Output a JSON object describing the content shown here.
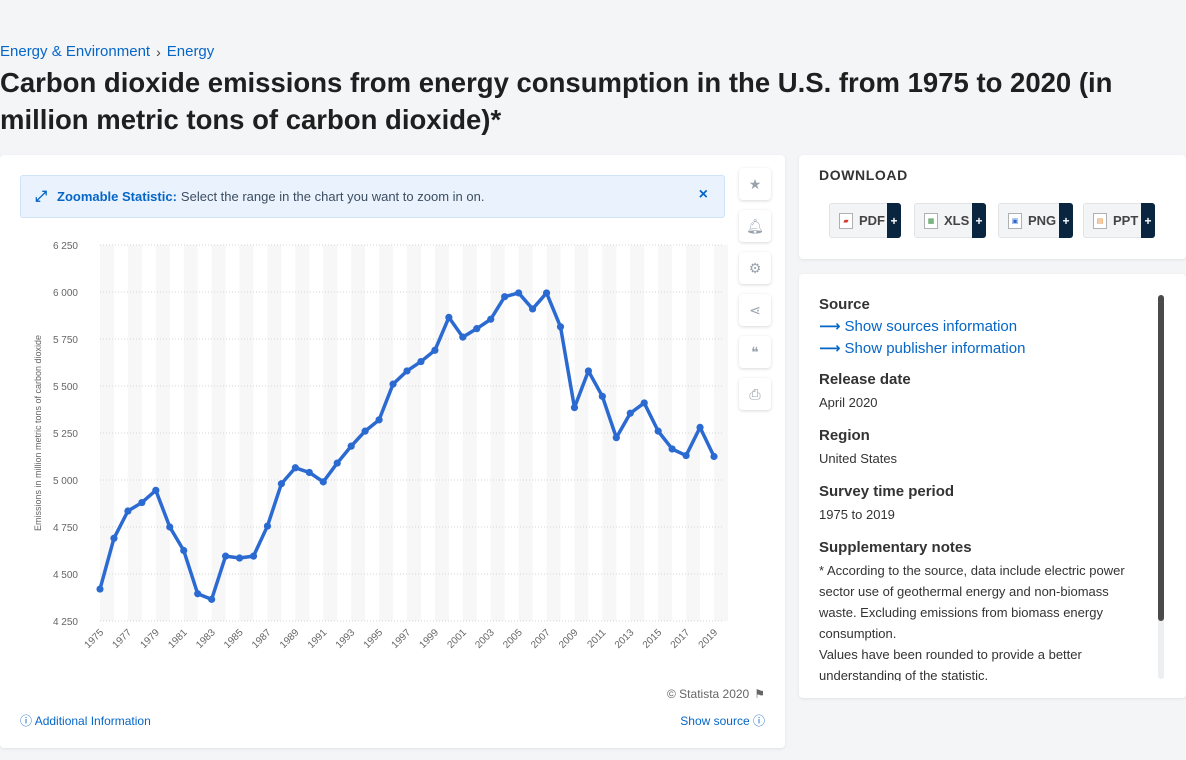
{
  "breadcrumb": {
    "items": [
      "Energy & Environment",
      "Energy"
    ],
    "separator": "›"
  },
  "page_title": "Carbon dioxide emissions from energy consumption in the U.S. from 1975 to 2020 (in million metric tons of carbon dioxide)*",
  "zoom_banner": {
    "label": "Zoomable Statistic:",
    "text": "Select the range in the chart you want to zoom in on.",
    "close": "×"
  },
  "side_tools": [
    "star-icon",
    "bell-icon",
    "gear-icon",
    "share-icon",
    "quote-icon",
    "print-icon"
  ],
  "chart_data": {
    "type": "line",
    "ylabel": "Emissions in million metric tons of carbon dioxide",
    "xlabel": "",
    "ylim": [
      4250,
      6250
    ],
    "yticks": [
      4250,
      4500,
      4750,
      5000,
      5250,
      5500,
      5750,
      6000,
      6250
    ],
    "ytick_labels": [
      "4 250",
      "4 500",
      "4 750",
      "5 000",
      "5 250",
      "5 500",
      "5 750",
      "6 000",
      "6 250"
    ],
    "xtick_labels": [
      "1975",
      "1977",
      "1979",
      "1981",
      "1983",
      "1985",
      "1987",
      "1989",
      "1991",
      "1993",
      "1995",
      "1997",
      "1999",
      "2001",
      "2003",
      "2005",
      "2007",
      "2009",
      "2011",
      "2013",
      "2015",
      "2017",
      "2019"
    ],
    "grid": true,
    "line_color": "#2b6ad0",
    "x": [
      1975,
      1976,
      1977,
      1978,
      1979,
      1980,
      1981,
      1982,
      1983,
      1984,
      1985,
      1986,
      1987,
      1988,
      1989,
      1990,
      1991,
      1992,
      1993,
      1994,
      1995,
      1996,
      1997,
      1998,
      1999,
      2000,
      2001,
      2002,
      2003,
      2004,
      2005,
      2006,
      2007,
      2008,
      2009,
      2010,
      2011,
      2012,
      2013,
      2014,
      2015,
      2016,
      2017,
      2018,
      2019
    ],
    "values": [
      4420,
      4690,
      4835,
      4880,
      4945,
      4750,
      4625,
      4395,
      4365,
      4595,
      4585,
      4595,
      4755,
      4980,
      5065,
      5040,
      4990,
      5090,
      5180,
      5260,
      5320,
      5510,
      5580,
      5630,
      5690,
      5865,
      5760,
      5805,
      5855,
      5975,
      5995,
      5910,
      5995,
      5815,
      5385,
      5580,
      5445,
      5225,
      5355,
      5410,
      5260,
      5165,
      5130,
      5280,
      5125
    ]
  },
  "copyright": "© Statista 2020",
  "additional_info": "Additional Information",
  "show_source": "Show source",
  "download": {
    "title": "DOWNLOAD",
    "buttons": [
      {
        "label": "PDF",
        "icon": "pdf-file-icon",
        "color": "#d9342b"
      },
      {
        "label": "XLS",
        "icon": "xls-file-icon",
        "color": "#2e8b3a"
      },
      {
        "label": "PNG",
        "icon": "png-file-icon",
        "color": "#2b6ad0"
      },
      {
        "label": "PPT",
        "icon": "ppt-file-icon",
        "color": "#e07b24"
      }
    ],
    "plus": "+"
  },
  "info": {
    "source_title": "Source",
    "sources_link": "Show sources information",
    "publisher_link": "Show publisher information",
    "release_title": "Release date",
    "release_value": "April 2020",
    "region_title": "Region",
    "region_value": "United States",
    "survey_title": "Survey time period",
    "survey_value": "1975 to 2019",
    "notes_title": "Supplementary notes",
    "notes_p1": "* According to the source, data include electric power sector use of geothermal energy and non-biomass waste. Excluding emissions from biomass energy consumption.",
    "notes_p2": "Values have been rounded to provide a better understanding of the statistic."
  }
}
